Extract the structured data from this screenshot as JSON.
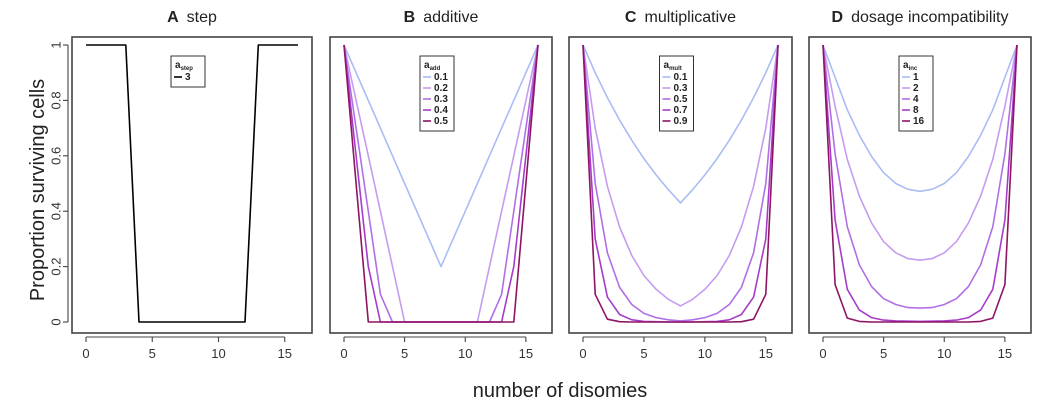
{
  "figure": {
    "ylabel": "Proportion surviving cells",
    "xlabel": "number of disomies"
  },
  "chart_data": [
    {
      "type": "line",
      "panel_letter": "A",
      "title": "step",
      "xlim": [
        0,
        16
      ],
      "ylim": [
        0,
        1
      ],
      "xticks": [
        0,
        5,
        10,
        15
      ],
      "yticks": [
        0,
        0.2,
        0.4,
        0.6,
        0.8,
        1
      ],
      "show_yticks": true,
      "legend": {
        "title": "a",
        "subscript": "step",
        "placement": "top-center"
      },
      "x": [
        0,
        1,
        2,
        3,
        4,
        5,
        6,
        7,
        8,
        9,
        10,
        11,
        12,
        13,
        14,
        15,
        16
      ],
      "series": [
        {
          "name": "3",
          "color": "#000000",
          "values": [
            1,
            1,
            1,
            1,
            0,
            0,
            0,
            0,
            0,
            0,
            0,
            0,
            0,
            1,
            1,
            1,
            1
          ]
        }
      ]
    },
    {
      "type": "line",
      "panel_letter": "B",
      "title": "additive",
      "xlim": [
        0,
        16
      ],
      "ylim": [
        0,
        1
      ],
      "xticks": [
        0,
        5,
        10,
        15
      ],
      "yticks": [
        0,
        0.2,
        0.4,
        0.6,
        0.8,
        1
      ],
      "show_yticks": false,
      "legend": {
        "title": "a",
        "subscript": "add",
        "placement": "top-center"
      },
      "x": [
        0,
        1,
        2,
        3,
        4,
        5,
        6,
        7,
        8,
        9,
        10,
        11,
        12,
        13,
        14,
        15,
        16
      ],
      "series": [
        {
          "name": "0.1",
          "color": "#a9bdf5",
          "values": [
            1,
            0.9,
            0.8,
            0.7,
            0.6,
            0.5,
            0.4,
            0.3,
            0.2,
            0.3,
            0.4,
            0.5,
            0.6,
            0.7,
            0.8,
            0.9,
            1
          ]
        },
        {
          "name": "0.2",
          "color": "#c59cf0",
          "values": [
            1,
            0.8,
            0.6,
            0.4,
            0.2,
            0,
            0,
            0,
            0,
            0,
            0,
            0,
            0.2,
            0.4,
            0.6,
            0.8,
            1
          ]
        },
        {
          "name": "0.3",
          "color": "#b16fe6",
          "values": [
            1,
            0.7,
            0.4,
            0.1,
            0,
            0,
            0,
            0,
            0,
            0,
            0,
            0,
            0,
            0.1,
            0.4,
            0.7,
            1
          ]
        },
        {
          "name": "0.4",
          "color": "#a63cc9",
          "values": [
            1,
            0.6,
            0.2,
            0,
            0,
            0,
            0,
            0,
            0,
            0,
            0,
            0,
            0,
            0,
            0.2,
            0.6,
            1
          ]
        },
        {
          "name": "0.5",
          "color": "#8e1464",
          "values": [
            1,
            0.5,
            0,
            0,
            0,
            0,
            0,
            0,
            0,
            0,
            0,
            0,
            0,
            0,
            0,
            0.5,
            1
          ]
        }
      ]
    },
    {
      "type": "line",
      "panel_letter": "C",
      "title": "multiplicative",
      "xlim": [
        0,
        16
      ],
      "ylim": [
        0,
        1
      ],
      "xticks": [
        0,
        5,
        10,
        15
      ],
      "yticks": [
        0,
        0.2,
        0.4,
        0.6,
        0.8,
        1
      ],
      "show_yticks": false,
      "legend": {
        "title": "a",
        "subscript": "mult",
        "placement": "top-center"
      },
      "x": [
        0,
        1,
        2,
        3,
        4,
        5,
        6,
        7,
        8,
        9,
        10,
        11,
        12,
        13,
        14,
        15,
        16
      ],
      "series": [
        {
          "name": "0.1",
          "color": "#a9bdf5",
          "values": [
            1,
            0.9,
            0.81,
            0.729,
            0.656,
            0.59,
            0.531,
            0.478,
            0.43,
            0.478,
            0.531,
            0.59,
            0.656,
            0.729,
            0.81,
            0.9,
            1
          ]
        },
        {
          "name": "0.3",
          "color": "#c59cf0",
          "values": [
            1,
            0.7,
            0.49,
            0.343,
            0.24,
            0.168,
            0.118,
            0.082,
            0.058,
            0.082,
            0.118,
            0.168,
            0.24,
            0.343,
            0.49,
            0.7,
            1
          ]
        },
        {
          "name": "0.5",
          "color": "#b16fe6",
          "values": [
            1,
            0.5,
            0.25,
            0.125,
            0.063,
            0.031,
            0.016,
            0.008,
            0.004,
            0.008,
            0.016,
            0.031,
            0.063,
            0.125,
            0.25,
            0.5,
            1
          ]
        },
        {
          "name": "0.7",
          "color": "#a63cc9",
          "values": [
            1,
            0.3,
            0.09,
            0.027,
            0.008,
            0.002,
            0.001,
            0,
            0,
            0,
            0.001,
            0.002,
            0.008,
            0.027,
            0.09,
            0.3,
            1
          ]
        },
        {
          "name": "0.9",
          "color": "#8e1464",
          "values": [
            1,
            0.1,
            0.01,
            0.001,
            0,
            0,
            0,
            0,
            0,
            0,
            0,
            0,
            0,
            0.001,
            0.01,
            0.1,
            1
          ]
        }
      ]
    },
    {
      "type": "line",
      "panel_letter": "D",
      "title": "dosage incompatibility",
      "xlim": [
        0,
        16
      ],
      "ylim": [
        0,
        1
      ],
      "xticks": [
        0,
        5,
        10,
        15
      ],
      "yticks": [
        0,
        0.2,
        0.4,
        0.6,
        0.8,
        1
      ],
      "show_yticks": false,
      "legend": {
        "title": "a",
        "subscript": "inc",
        "placement": "top-center"
      },
      "x": [
        0,
        1,
        2,
        3,
        4,
        5,
        6,
        7,
        8,
        9,
        10,
        11,
        12,
        13,
        14,
        15,
        16
      ],
      "series": [
        {
          "name": "1",
          "color": "#a9bdf5",
          "values": [
            1,
            0.883,
            0.766,
            0.674,
            0.598,
            0.539,
            0.5,
            0.479,
            0.472,
            0.479,
            0.5,
            0.539,
            0.598,
            0.674,
            0.766,
            0.883,
            1
          ]
        },
        {
          "name": "2",
          "color": "#c59cf0",
          "values": [
            1,
            0.779,
            0.587,
            0.454,
            0.358,
            0.29,
            0.25,
            0.229,
            0.223,
            0.229,
            0.25,
            0.29,
            0.358,
            0.454,
            0.587,
            0.779,
            1
          ]
        },
        {
          "name": "4",
          "color": "#b16fe6",
          "values": [
            1,
            0.607,
            0.344,
            0.206,
            0.128,
            0.084,
            0.063,
            0.052,
            0.05,
            0.052,
            0.063,
            0.084,
            0.128,
            0.206,
            0.344,
            0.607,
            1
          ]
        },
        {
          "name": "8",
          "color": "#a63cc9",
          "values": [
            1,
            0.368,
            0.118,
            0.043,
            0.016,
            0.007,
            0.004,
            0.003,
            0.002,
            0.003,
            0.004,
            0.007,
            0.016,
            0.043,
            0.118,
            0.368,
            1
          ]
        },
        {
          "name": "16",
          "color": "#8e1464",
          "values": [
            1,
            0.135,
            0.014,
            0.002,
            0,
            0,
            0,
            0,
            0,
            0,
            0,
            0,
            0,
            0.002,
            0.014,
            0.135,
            1
          ]
        }
      ]
    }
  ]
}
